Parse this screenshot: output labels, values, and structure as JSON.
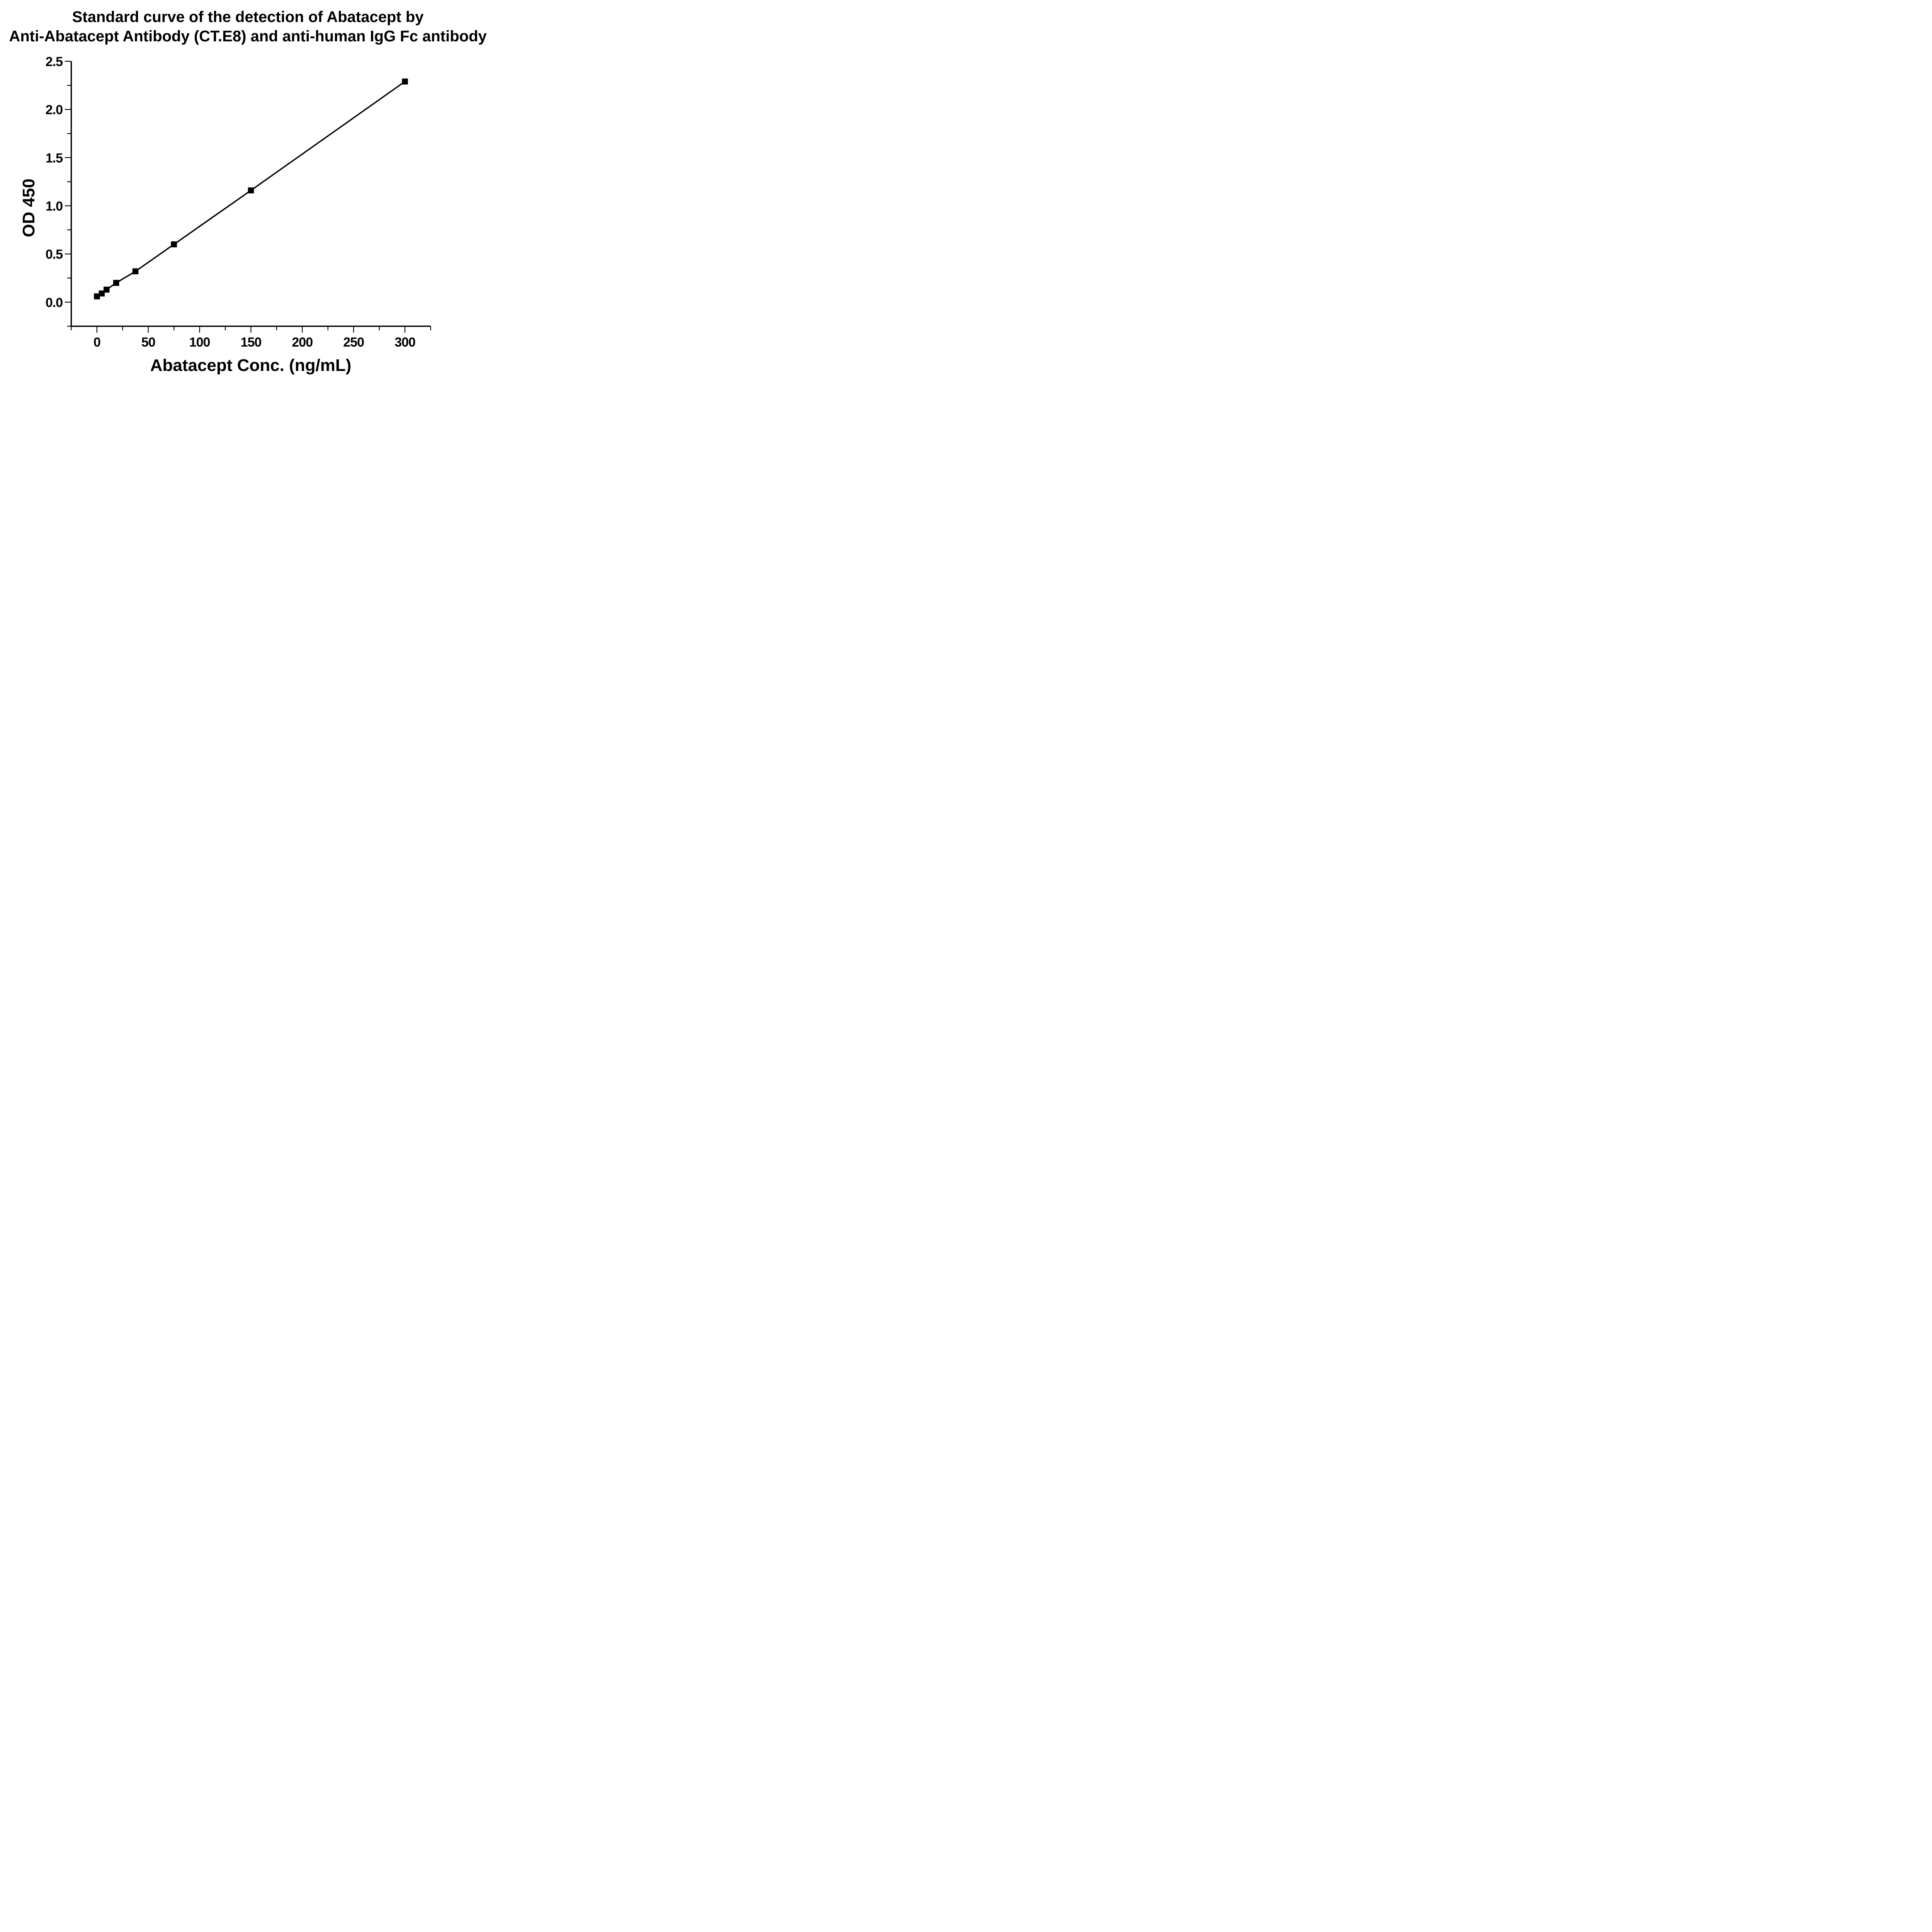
{
  "chart_data": {
    "type": "line",
    "title_line1": "Standard curve of the detection of Abatacept by",
    "title_line2": "Anti-Abatacept Antibody (CT.E8) and anti-human IgG Fc antibody",
    "xlabel": "Abatacept Conc. (ng/mL)",
    "ylabel": "OD 450",
    "series": [
      {
        "x": [
          0,
          4.69,
          9.38,
          18.75,
          37.5,
          75,
          150,
          300
        ],
        "y": [
          0.06,
          0.09,
          0.13,
          0.2,
          0.32,
          0.6,
          1.16,
          2.29
        ]
      }
    ],
    "marker": "filled-square",
    "marker_color": "#000000",
    "line_color": "#000000",
    "background_color": "#ffffff",
    "xlim": [
      -25,
      325
    ],
    "ylim": [
      -0.25,
      2.5
    ],
    "x_ticks_major": [
      0,
      50,
      100,
      150,
      200,
      250,
      300
    ],
    "x_ticks_minor": [
      -25,
      25,
      75,
      125,
      175,
      225,
      275,
      325
    ],
    "y_ticks_major": [
      0.0,
      0.5,
      1.0,
      1.5,
      2.0,
      2.5
    ],
    "y_ticks_minor": [
      -0.25,
      0.25,
      0.75,
      1.25,
      1.75,
      2.25
    ],
    "y_tick_label_decimals": 1,
    "grid": false,
    "legend": "none",
    "tick_direction": "out",
    "frame": "open-left-bottom"
  }
}
